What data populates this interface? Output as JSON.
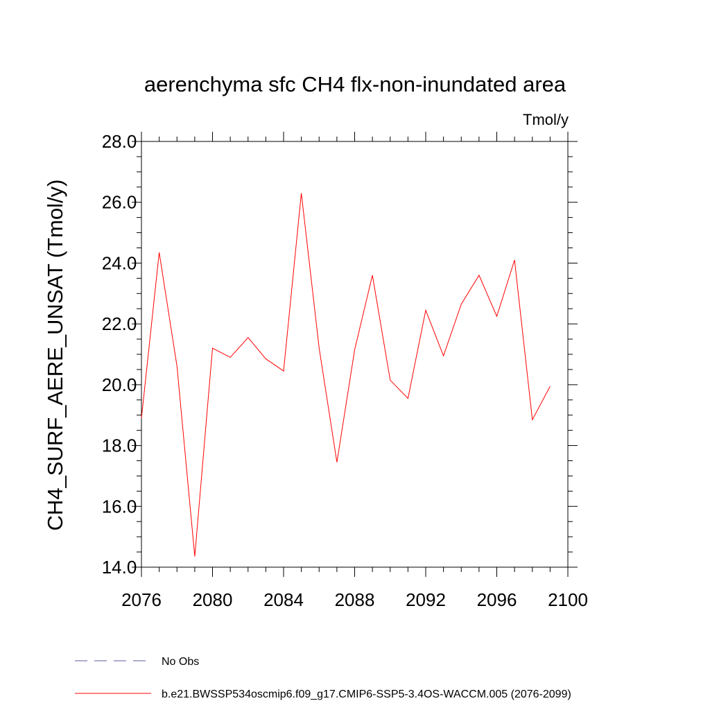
{
  "chart_data": {
    "type": "line",
    "title": "aerenchyma sfc CH4 flx-non-inundated area",
    "units_label": "Tmol/y",
    "ylabel": "CH4_SURF_AERE_UNSAT  (Tmol/y)",
    "xlabel": "",
    "xlim": [
      2076,
      2100
    ],
    "ylim": [
      14.0,
      28.0
    ],
    "x_ticks": [
      "2076",
      "2080",
      "2084",
      "2088",
      "2092",
      "2096",
      "2100"
    ],
    "y_ticks": [
      "14.0",
      "16.0",
      "18.0",
      "20.0",
      "22.0",
      "24.0",
      "26.0",
      "28.0"
    ],
    "series": [
      {
        "name": "b.e21.BWSSP534oscmip6.f09_g17.CMIP6-SSP5-3.4OS-WACCM.005 (2076-2099)",
        "color": "#ff0000",
        "style": "solid",
        "x": [
          2076,
          2077,
          2078,
          2079,
          2080,
          2081,
          2082,
          2083,
          2084,
          2085,
          2086,
          2087,
          2088,
          2089,
          2090,
          2091,
          2092,
          2093,
          2094,
          2095,
          2096,
          2097,
          2098,
          2099
        ],
        "y": [
          18.9,
          24.35,
          20.6,
          14.35,
          21.2,
          20.9,
          21.55,
          20.85,
          20.45,
          26.3,
          21.2,
          17.45,
          21.15,
          23.6,
          20.15,
          19.55,
          22.45,
          20.95,
          22.65,
          23.6,
          22.25,
          24.1,
          18.85,
          19.95
        ]
      }
    ],
    "legend": [
      {
        "label": "No Obs",
        "color": "#5a5aa0",
        "style": "dashed"
      },
      {
        "label": "b.e21.BWSSP534oscmip6.f09_g17.CMIP6-SSP5-3.4OS-WACCM.005 (2076-2099)",
        "color": "#ff0000",
        "style": "solid"
      }
    ],
    "legend_position": "bottom-left",
    "grid": false
  }
}
